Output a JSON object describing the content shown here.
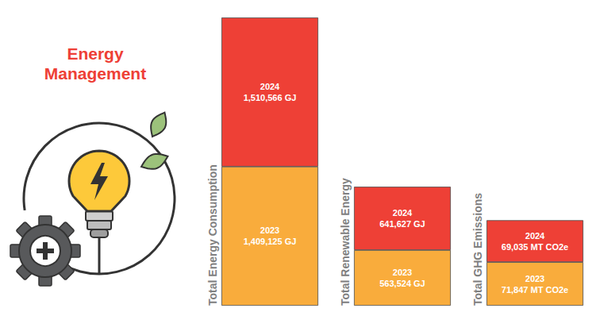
{
  "title": "Energy Management",
  "chart_data": [
    {
      "type": "bar",
      "stacked": true,
      "data_labels": true,
      "tick_labels": false,
      "grid": false,
      "categories": [
        "Total Energy Consumption"
      ],
      "ylim": [
        0,
        2920000
      ],
      "series": [
        {
          "name": "2023",
          "color": "#F9AC3C",
          "values": [
            1409125
          ],
          "value_labels": [
            "1,409,125 GJ"
          ]
        },
        {
          "name": "2024",
          "color": "#EE4036",
          "values": [
            1510566
          ],
          "value_labels": [
            "1,510,566 GJ"
          ]
        }
      ]
    },
    {
      "type": "bar",
      "stacked": true,
      "data_labels": true,
      "tick_labels": false,
      "grid": false,
      "categories": [
        "Total Renewable Energy"
      ],
      "ylim": [
        0,
        2920000
      ],
      "series": [
        {
          "name": "2023",
          "color": "#F9AC3C",
          "values": [
            563524
          ],
          "value_labels": [
            "563,524 GJ"
          ]
        },
        {
          "name": "2024",
          "color": "#EE4036",
          "values": [
            641627
          ],
          "value_labels": [
            "641,627 GJ"
          ]
        }
      ]
    },
    {
      "type": "bar",
      "stacked": true,
      "data_labels": true,
      "tick_labels": false,
      "grid": false,
      "categories": [
        "Total GHG Emissions"
      ],
      "ylim": [
        0,
        475000
      ],
      "series": [
        {
          "name": "2023",
          "color": "#F9AC3C",
          "values": [
            71847
          ],
          "value_labels": [
            "71,847 MT CO2e"
          ]
        },
        {
          "name": "2024",
          "color": "#EE4036",
          "values": [
            69035
          ],
          "value_labels": [
            "69,035 MT CO2e"
          ]
        }
      ]
    }
  ]
}
